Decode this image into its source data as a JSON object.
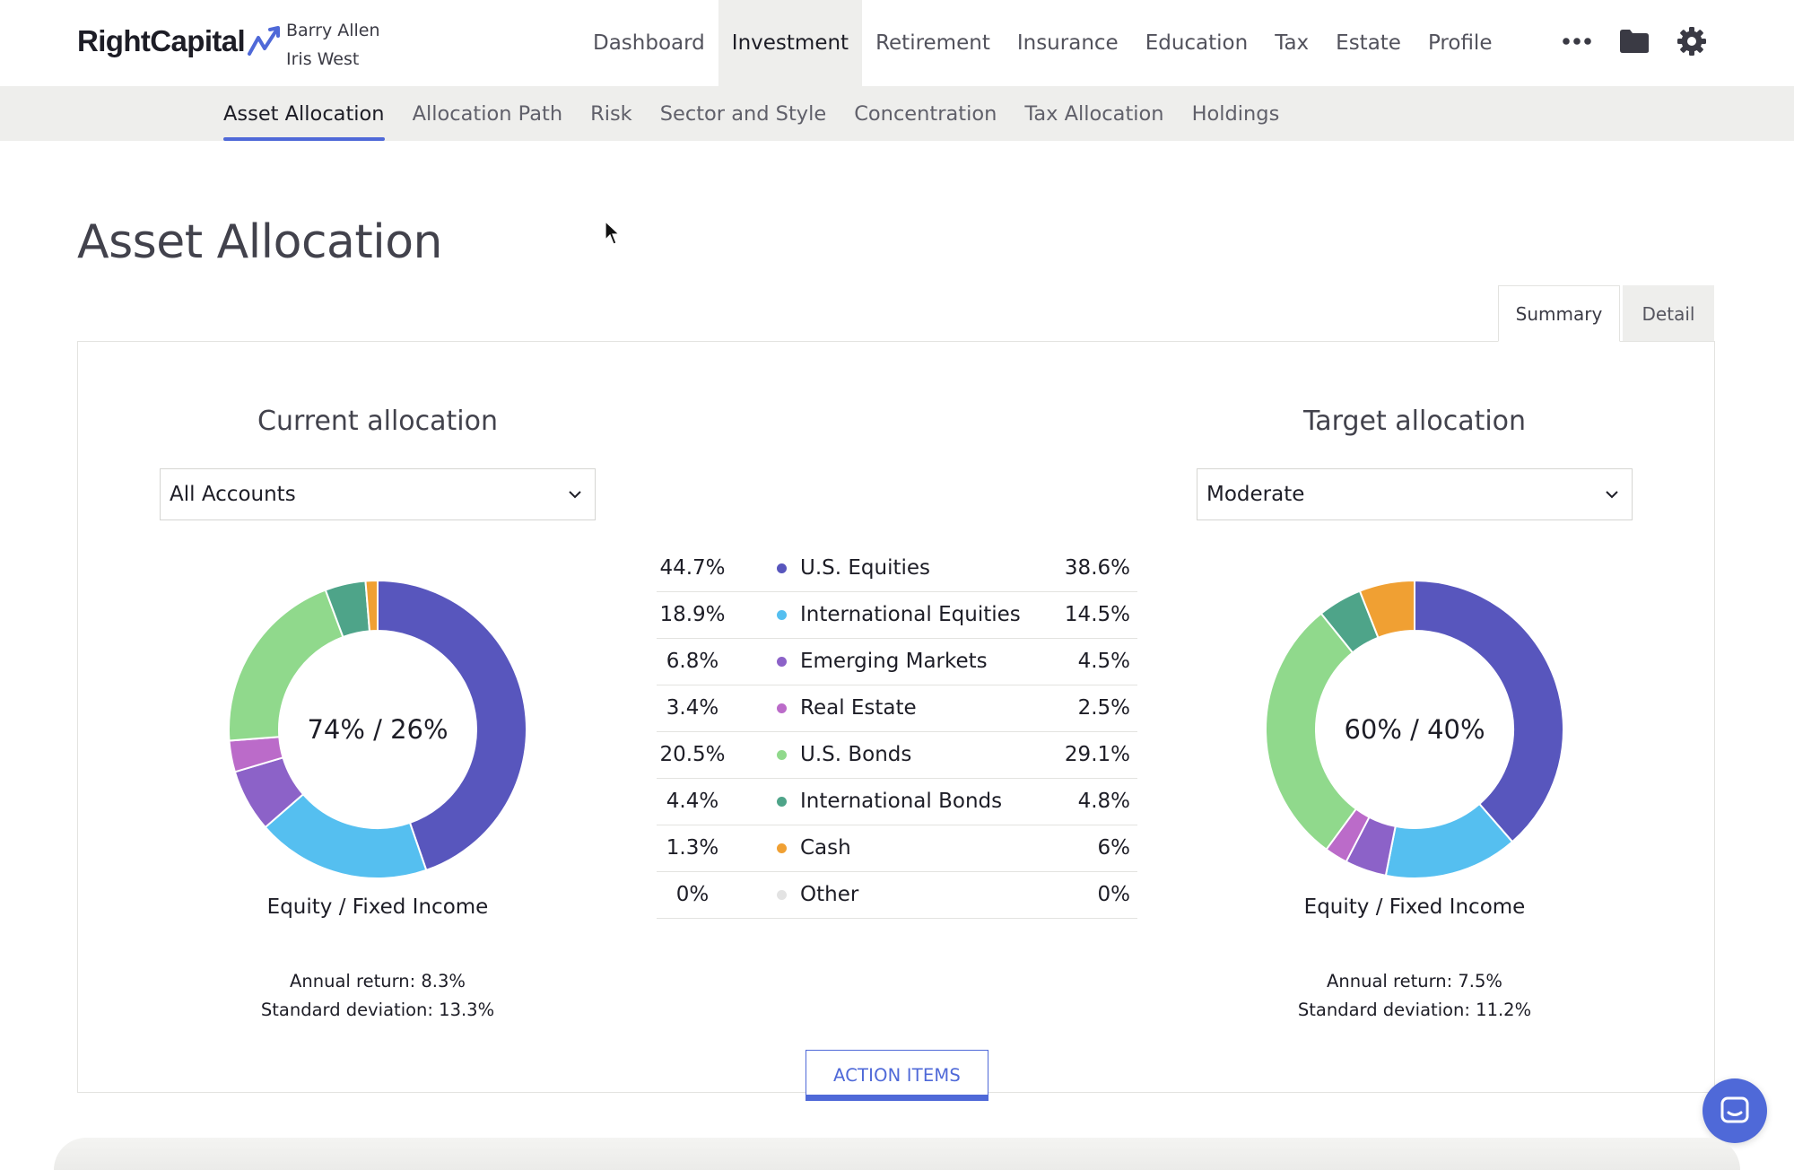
{
  "header": {
    "logo_text": "RightCapital",
    "clients": [
      "Barry Allen",
      "Iris West"
    ],
    "nav": [
      {
        "label": "Dashboard",
        "active": false
      },
      {
        "label": "Investment",
        "active": true
      },
      {
        "label": "Retirement",
        "active": false
      },
      {
        "label": "Insurance",
        "active": false
      },
      {
        "label": "Education",
        "active": false
      },
      {
        "label": "Tax",
        "active": false
      },
      {
        "label": "Estate",
        "active": false
      },
      {
        "label": "Profile",
        "active": false
      }
    ],
    "icons": [
      "more-icon",
      "folder-icon",
      "gear-icon"
    ]
  },
  "subnav": [
    {
      "label": "Asset Allocation",
      "active": true
    },
    {
      "label": "Allocation Path",
      "active": false
    },
    {
      "label": "Risk",
      "active": false
    },
    {
      "label": "Sector and Style",
      "active": false
    },
    {
      "label": "Concentration",
      "active": false
    },
    {
      "label": "Tax Allocation",
      "active": false
    },
    {
      "label": "Holdings",
      "active": false
    }
  ],
  "page_title": "Asset Allocation",
  "tabs": {
    "summary": "Summary",
    "detail": "Detail",
    "active": "Summary"
  },
  "current": {
    "title": "Current allocation",
    "dropdown_value": "All Accounts",
    "center_label": "74% / 26%",
    "caption": "Equity / Fixed Income",
    "annual_return": "Annual return: 8.3%",
    "std_dev": "Standard deviation: 13.3%"
  },
  "target": {
    "title": "Target allocation",
    "dropdown_value": "Moderate",
    "center_label": "60% / 40%",
    "caption": "Equity / Fixed Income",
    "annual_return": "Annual return: 7.5%",
    "std_dev": "Standard deviation: 11.2%"
  },
  "colors": {
    "accent": "#4f69d8",
    "us_equities": "#5856bd",
    "intl_equities": "#55bff0",
    "emerging": "#8c62c8",
    "real_estate": "#bb6bc9",
    "us_bonds": "#90d98c",
    "intl_bonds": "#4ea489",
    "cash": "#f0a033",
    "other": "#e3e3e3"
  },
  "chart_data": [
    {
      "type": "pie",
      "title": "Current allocation",
      "categories": [
        "U.S. Equities",
        "International Equities",
        "Emerging Markets",
        "Real Estate",
        "U.S. Bonds",
        "International Bonds",
        "Cash",
        "Other"
      ],
      "values": [
        44.7,
        18.9,
        6.8,
        3.4,
        20.5,
        4.4,
        1.3,
        0
      ]
    },
    {
      "type": "pie",
      "title": "Target allocation",
      "categories": [
        "U.S. Equities",
        "International Equities",
        "Emerging Markets",
        "Real Estate",
        "U.S. Bonds",
        "International Bonds",
        "Cash",
        "Other"
      ],
      "values": [
        38.6,
        14.5,
        4.5,
        2.5,
        29.1,
        4.8,
        6,
        0
      ]
    }
  ],
  "legend": [
    {
      "current": "44.7%",
      "name": "U.S. Equities",
      "target": "38.6%",
      "color": "#5856bd"
    },
    {
      "current": "18.9%",
      "name": "International Equities",
      "target": "14.5%",
      "color": "#55bff0"
    },
    {
      "current": "6.8%",
      "name": "Emerging Markets",
      "target": "4.5%",
      "color": "#8c62c8"
    },
    {
      "current": "3.4%",
      "name": "Real Estate",
      "target": "2.5%",
      "color": "#bb6bc9"
    },
    {
      "current": "20.5%",
      "name": "U.S. Bonds",
      "target": "29.1%",
      "color": "#90d98c"
    },
    {
      "current": "4.4%",
      "name": "International Bonds",
      "target": "4.8%",
      "color": "#4ea489"
    },
    {
      "current": "1.3%",
      "name": "Cash",
      "target": "6%",
      "color": "#f0a033"
    },
    {
      "current": "0%",
      "name": "Other",
      "target": "0%",
      "color": "#e3e3e3"
    }
  ],
  "action_button": "ACTION ITEMS"
}
